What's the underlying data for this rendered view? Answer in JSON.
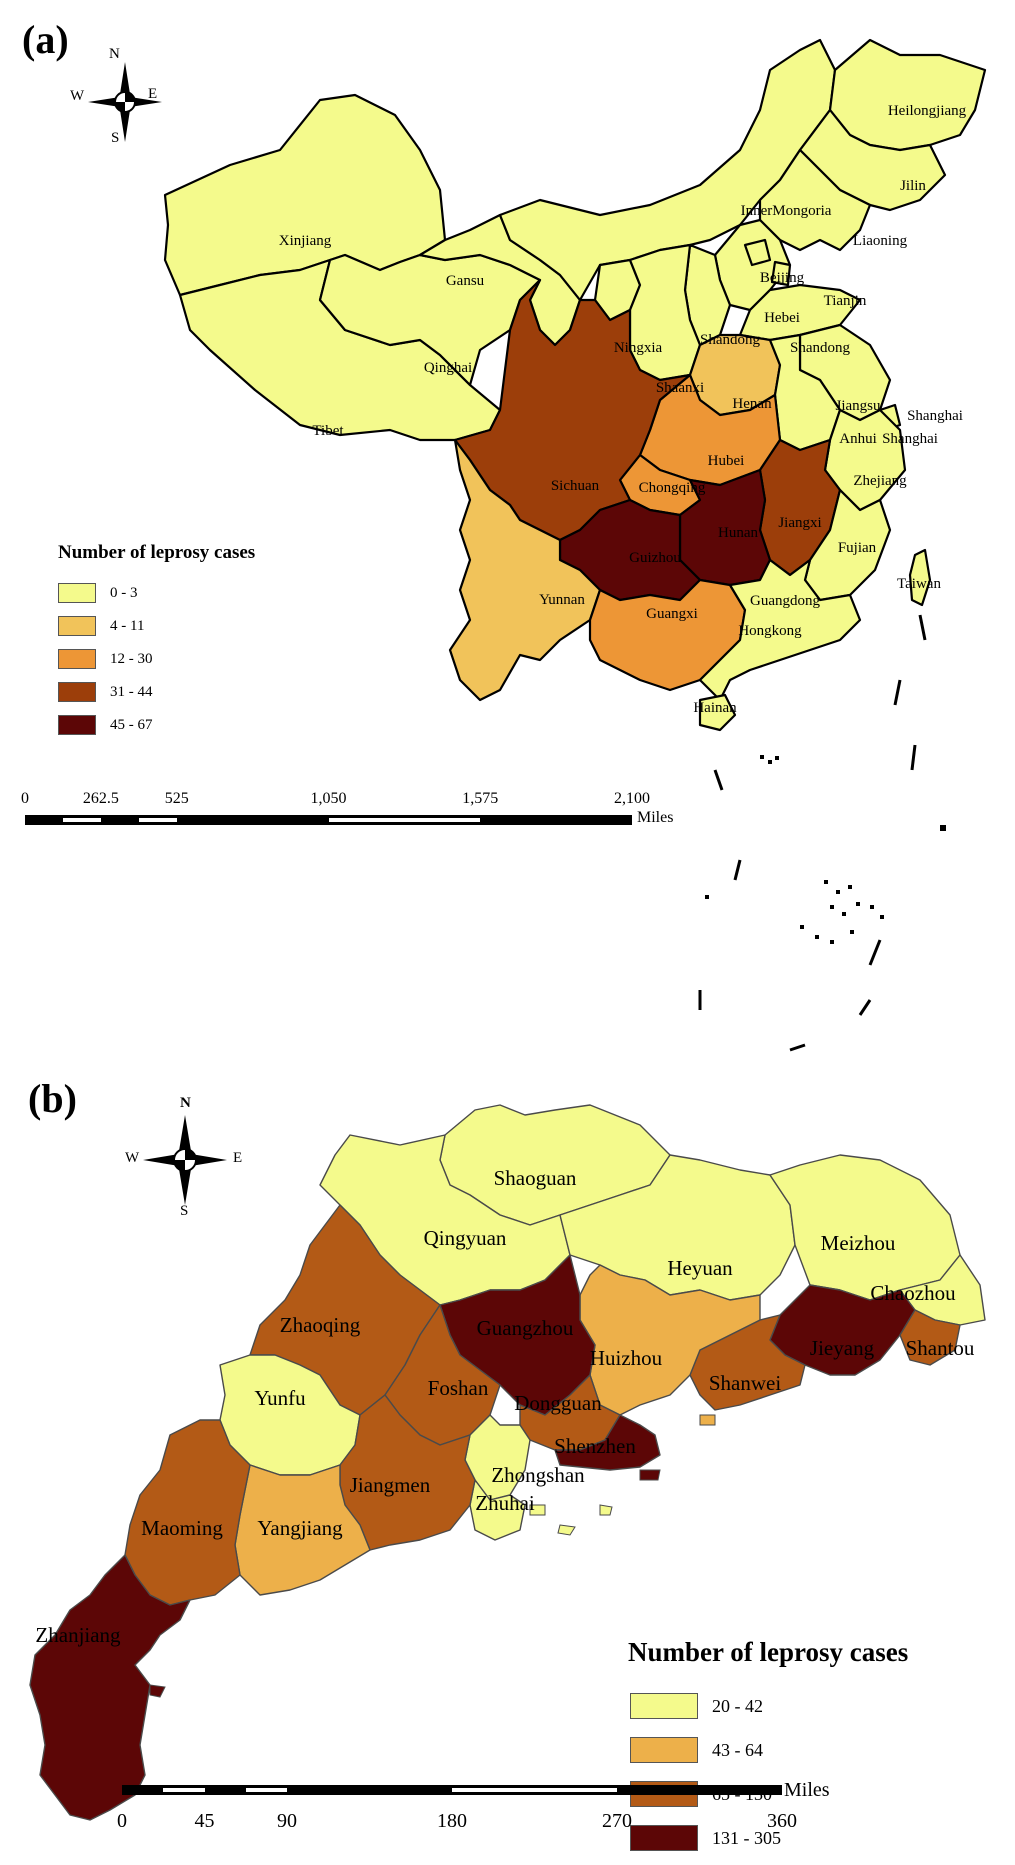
{
  "panel_a": {
    "label": "(a)",
    "compass": {
      "n": "N",
      "s": "S",
      "e": "E",
      "w": "W"
    },
    "legend_title": "Number of leprosy cases",
    "legend": [
      {
        "range": "0 - 3",
        "color": "#f4fa8c"
      },
      {
        "range": "4 - 11",
        "color": "#f1c35a"
      },
      {
        "range": "12 - 30",
        "color": "#ed9636"
      },
      {
        "range": "31 - 44",
        "color": "#9c3e0a"
      },
      {
        "range": "45 - 67",
        "color": "#5c0606"
      }
    ],
    "scale_ticks": [
      "0",
      "262.5",
      "525",
      "1,050",
      "1,575",
      "2,100"
    ],
    "scale_unit": "Miles",
    "regions": {
      "Xinjiang": "Xinjiang",
      "Tibet": "Tibet",
      "Qinghai": "Qinghai",
      "Gansu": "Gansu",
      "InnerMongoria": "InnerMongoria",
      "Heilongjiang": "Heilongjiang",
      "Jilin": "Jilin",
      "Liaoning": "Liaoning",
      "Beijing": "Beijing",
      "Tianjin": "Tianjin",
      "Hebei": "Hebei",
      "Ningxia": "Ningxia",
      "Shandong_w": "Shandong",
      "Shandong_e": "Shandong",
      "Shaanxi": "Shaanxi",
      "Henan": "Henan",
      "Jiangsu": "Jiangsu",
      "Shanghai": "Shanghai",
      "Anhui": "Anhui",
      "Shanghai2": "Shanghai",
      "Sichuan": "Sichuan",
      "Hubei": "Hubei",
      "Chongqing": "Chongqing",
      "Zhejiang": "Zhejiang",
      "Guizhou": "Guizhou",
      "Hunan": "Hunan",
      "Jiangxi": "Jiangxi",
      "Fujian": "Fujian",
      "Taiwan": "Taiwan",
      "Yunnan": "Yunnan",
      "Guangxi": "Guangxi",
      "Guangdong": "Guangdong",
      "Hongkong": "Hongkong",
      "Hainan": "Hainan"
    }
  },
  "panel_b": {
    "label": "(b)",
    "compass": {
      "n": "N",
      "s": "S",
      "e": "E",
      "w": "W"
    },
    "legend_title": "Number of leprosy cases",
    "legend": [
      {
        "range": "20 - 42",
        "color": "#f4fa8c"
      },
      {
        "range": "43 - 64",
        "color": "#edb04a"
      },
      {
        "range": "65 - 130",
        "color": "#b35a16"
      },
      {
        "range": "131 - 305",
        "color": "#5c0606"
      }
    ],
    "scale_ticks": [
      "0",
      "45",
      "90",
      "180",
      "270",
      "360"
    ],
    "scale_unit": "Miles",
    "regions": {
      "Shaoguan": "Shaoguan",
      "Qingyuan": "Qingyuan",
      "Heyuan": "Heyuan",
      "Meizhou": "Meizhou",
      "Chaozhou": "Chaozhou",
      "Zhaoqing": "Zhaoqing",
      "Guangzhou": "Guangzhou",
      "Huizhou": "Huizhou",
      "Jieyang": "Jieyang",
      "Shantou": "Shantou",
      "Yunfu": "Yunfu",
      "Foshan": "Foshan",
      "Dongguan": "Dongguan",
      "Shanwei": "Shanwei",
      "Shenzhen": "Shenzhen",
      "Zhongshan": "Zhongshan",
      "Jiangmen": "Jiangmen",
      "Zhuhai": "Zhuhai",
      "Maoming": "Maoming",
      "Yangjiang": "Yangjiang",
      "Zhanjiang": "Zhanjiang"
    }
  }
}
